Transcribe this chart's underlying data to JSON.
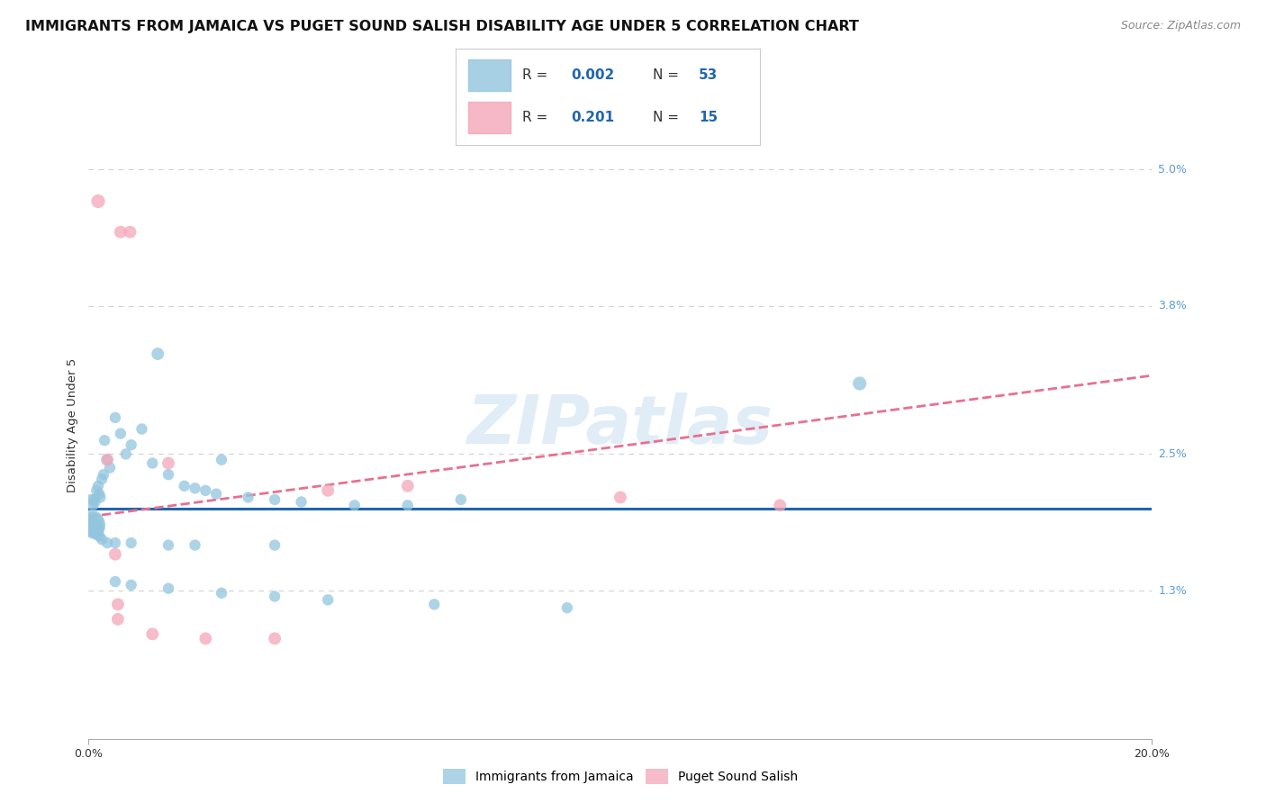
{
  "title": "IMMIGRANTS FROM JAMAICA VS PUGET SOUND SALISH DISABILITY AGE UNDER 5 CORRELATION CHART",
  "source": "Source: ZipAtlas.com",
  "ylabel": "Disability Age Under 5",
  "ytick_values": [
    1.3,
    2.5,
    3.8,
    5.0
  ],
  "xlim": [
    0.0,
    20.0
  ],
  "ylim": [
    0.0,
    5.5
  ],
  "legend1_label": "Immigrants from Jamaica",
  "legend2_label": "Puget Sound Salish",
  "r1": "0.002",
  "n1": "53",
  "r2": "0.201",
  "n2": "15",
  "blue_color": "#92c5de",
  "pink_color": "#f4a6b8",
  "line_blue": "#2166ac",
  "line_pink": "#e87090",
  "watermark": "ZIPatlas",
  "blue_slope": 0.0,
  "blue_intercept": 2.02,
  "pink_slope": 0.062,
  "pink_intercept": 1.95,
  "blue_points": [
    [
      0.05,
      2.1
    ],
    [
      0.08,
      2.05
    ],
    [
      0.1,
      2.1
    ],
    [
      0.12,
      2.08
    ],
    [
      0.15,
      2.18
    ],
    [
      0.18,
      2.22
    ],
    [
      0.2,
      2.15
    ],
    [
      0.22,
      2.12
    ],
    [
      0.25,
      2.28
    ],
    [
      0.28,
      2.32
    ],
    [
      0.3,
      2.62
    ],
    [
      0.35,
      2.45
    ],
    [
      0.4,
      2.38
    ],
    [
      0.5,
      2.82
    ],
    [
      0.6,
      2.68
    ],
    [
      0.7,
      2.5
    ],
    [
      0.8,
      2.58
    ],
    [
      1.0,
      2.72
    ],
    [
      1.2,
      2.42
    ],
    [
      1.3,
      3.38
    ],
    [
      1.5,
      2.32
    ],
    [
      1.8,
      2.22
    ],
    [
      2.0,
      2.2
    ],
    [
      2.2,
      2.18
    ],
    [
      2.4,
      2.15
    ],
    [
      2.5,
      2.45
    ],
    [
      3.0,
      2.12
    ],
    [
      3.5,
      2.1
    ],
    [
      4.0,
      2.08
    ],
    [
      5.0,
      2.05
    ],
    [
      6.0,
      2.05
    ],
    [
      7.0,
      2.1
    ],
    [
      0.05,
      1.9
    ],
    [
      0.08,
      1.88
    ],
    [
      0.1,
      1.85
    ],
    [
      0.15,
      1.8
    ],
    [
      0.2,
      1.78
    ],
    [
      0.25,
      1.75
    ],
    [
      0.35,
      1.72
    ],
    [
      0.5,
      1.72
    ],
    [
      0.8,
      1.72
    ],
    [
      1.5,
      1.7
    ],
    [
      2.0,
      1.7
    ],
    [
      3.5,
      1.7
    ],
    [
      0.5,
      1.38
    ],
    [
      0.8,
      1.35
    ],
    [
      1.5,
      1.32
    ],
    [
      2.5,
      1.28
    ],
    [
      3.5,
      1.25
    ],
    [
      4.5,
      1.22
    ],
    [
      6.5,
      1.18
    ],
    [
      9.0,
      1.15
    ],
    [
      14.5,
      3.12
    ]
  ],
  "blue_point_sizes": [
    80,
    80,
    80,
    80,
    80,
    80,
    80,
    80,
    80,
    80,
    80,
    80,
    80,
    80,
    80,
    80,
    80,
    80,
    80,
    100,
    80,
    80,
    80,
    80,
    80,
    80,
    80,
    80,
    80,
    80,
    80,
    80,
    400,
    400,
    300,
    100,
    80,
    80,
    80,
    80,
    80,
    80,
    80,
    80,
    80,
    80,
    80,
    80,
    80,
    80,
    80,
    80,
    120
  ],
  "pink_points": [
    [
      0.18,
      4.72
    ],
    [
      0.6,
      4.45
    ],
    [
      0.78,
      4.45
    ],
    [
      0.35,
      2.45
    ],
    [
      0.5,
      1.62
    ],
    [
      0.55,
      1.18
    ],
    [
      0.55,
      1.05
    ],
    [
      1.2,
      0.92
    ],
    [
      1.5,
      2.42
    ],
    [
      2.2,
      0.88
    ],
    [
      3.5,
      0.88
    ],
    [
      4.5,
      2.18
    ],
    [
      6.0,
      2.22
    ],
    [
      10.0,
      2.12
    ],
    [
      13.0,
      2.05
    ]
  ],
  "pink_point_sizes": [
    120,
    100,
    100,
    100,
    100,
    100,
    100,
    100,
    100,
    100,
    100,
    100,
    100,
    100,
    100
  ],
  "grid_color": "#d0d0d0",
  "background_color": "#ffffff",
  "title_fontsize": 11.5,
  "source_fontsize": 9,
  "axis_label_fontsize": 9.5,
  "ytick_color": "#5b9bd5",
  "legend_text_color": "#2166ac"
}
